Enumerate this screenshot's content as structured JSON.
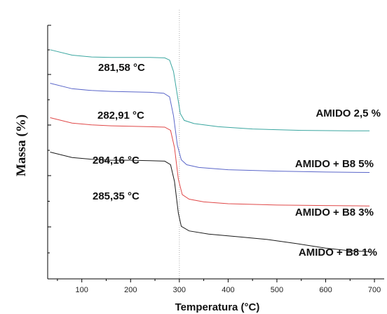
{
  "chart_data": {
    "type": "line",
    "title": "",
    "xlabel": "Temperatura (°C)",
    "ylabel": "Massa (%)",
    "xlim": [
      30,
      720
    ],
    "xticks": [
      "100",
      "200",
      "300",
      "400",
      "500",
      "600",
      "700"
    ],
    "reference_line_x": 300,
    "series": [
      {
        "name": "AMIDO 2,5 %",
        "color": "#3aa6a0",
        "onset_label": "281,58 °C",
        "points": [
          [
            35,
            94.6
          ],
          [
            80,
            93.4
          ],
          [
            120,
            93.0
          ],
          [
            160,
            92.9
          ],
          [
            200,
            92.9
          ],
          [
            240,
            92.9
          ],
          [
            270,
            92.8
          ],
          [
            280,
            92.3
          ],
          [
            288,
            89.8
          ],
          [
            296,
            84.5
          ],
          [
            302,
            80.5
          ],
          [
            310,
            79.0
          ],
          [
            330,
            78.3
          ],
          [
            380,
            77.6
          ],
          [
            450,
            77.1
          ],
          [
            550,
            76.8
          ],
          [
            650,
            76.7
          ],
          [
            690,
            76.7
          ]
        ]
      },
      {
        "name": "AMIDO + B8 5%",
        "color": "#5a66c9",
        "onset_label": "282,91 °C",
        "points": [
          [
            35,
            87.2
          ],
          [
            80,
            86.0
          ],
          [
            120,
            85.6
          ],
          [
            160,
            85.4
          ],
          [
            200,
            85.3
          ],
          [
            240,
            85.2
          ],
          [
            268,
            85.0
          ],
          [
            280,
            84.2
          ],
          [
            288,
            80.0
          ],
          [
            296,
            73.5
          ],
          [
            304,
            70.3
          ],
          [
            315,
            69.2
          ],
          [
            340,
            68.6
          ],
          [
            400,
            68.1
          ],
          [
            500,
            67.8
          ],
          [
            600,
            67.6
          ],
          [
            690,
            67.5
          ]
        ]
      },
      {
        "name": "AMIDO + B8 3%",
        "color": "#e04848",
        "onset_label": "284,16 °C",
        "points": [
          [
            35,
            79.6
          ],
          [
            80,
            78.4
          ],
          [
            120,
            78.0
          ],
          [
            160,
            77.8
          ],
          [
            200,
            77.7
          ],
          [
            240,
            77.6
          ],
          [
            270,
            77.5
          ],
          [
            282,
            76.8
          ],
          [
            290,
            73.0
          ],
          [
            298,
            66.0
          ],
          [
            306,
            62.6
          ],
          [
            320,
            61.6
          ],
          [
            350,
            61.0
          ],
          [
            400,
            60.6
          ],
          [
            500,
            60.3
          ],
          [
            600,
            60.2
          ],
          [
            690,
            60.1
          ]
        ]
      },
      {
        "name": "AMIDO + B8 1%",
        "color": "#1a1a1a",
        "onset_label": "285,35 °C",
        "points": [
          [
            35,
            72.0
          ],
          [
            80,
            70.8
          ],
          [
            120,
            70.4
          ],
          [
            160,
            70.2
          ],
          [
            200,
            70.2
          ],
          [
            240,
            70.1
          ],
          [
            270,
            70.0
          ],
          [
            282,
            69.2
          ],
          [
            290,
            65.5
          ],
          [
            298,
            58.5
          ],
          [
            304,
            55.6
          ],
          [
            320,
            54.6
          ],
          [
            360,
            53.9
          ],
          [
            420,
            53.3
          ],
          [
            480,
            52.7
          ],
          [
            540,
            51.8
          ],
          [
            600,
            50.8
          ],
          [
            650,
            50.2
          ],
          [
            690,
            50.0
          ]
        ]
      }
    ]
  }
}
